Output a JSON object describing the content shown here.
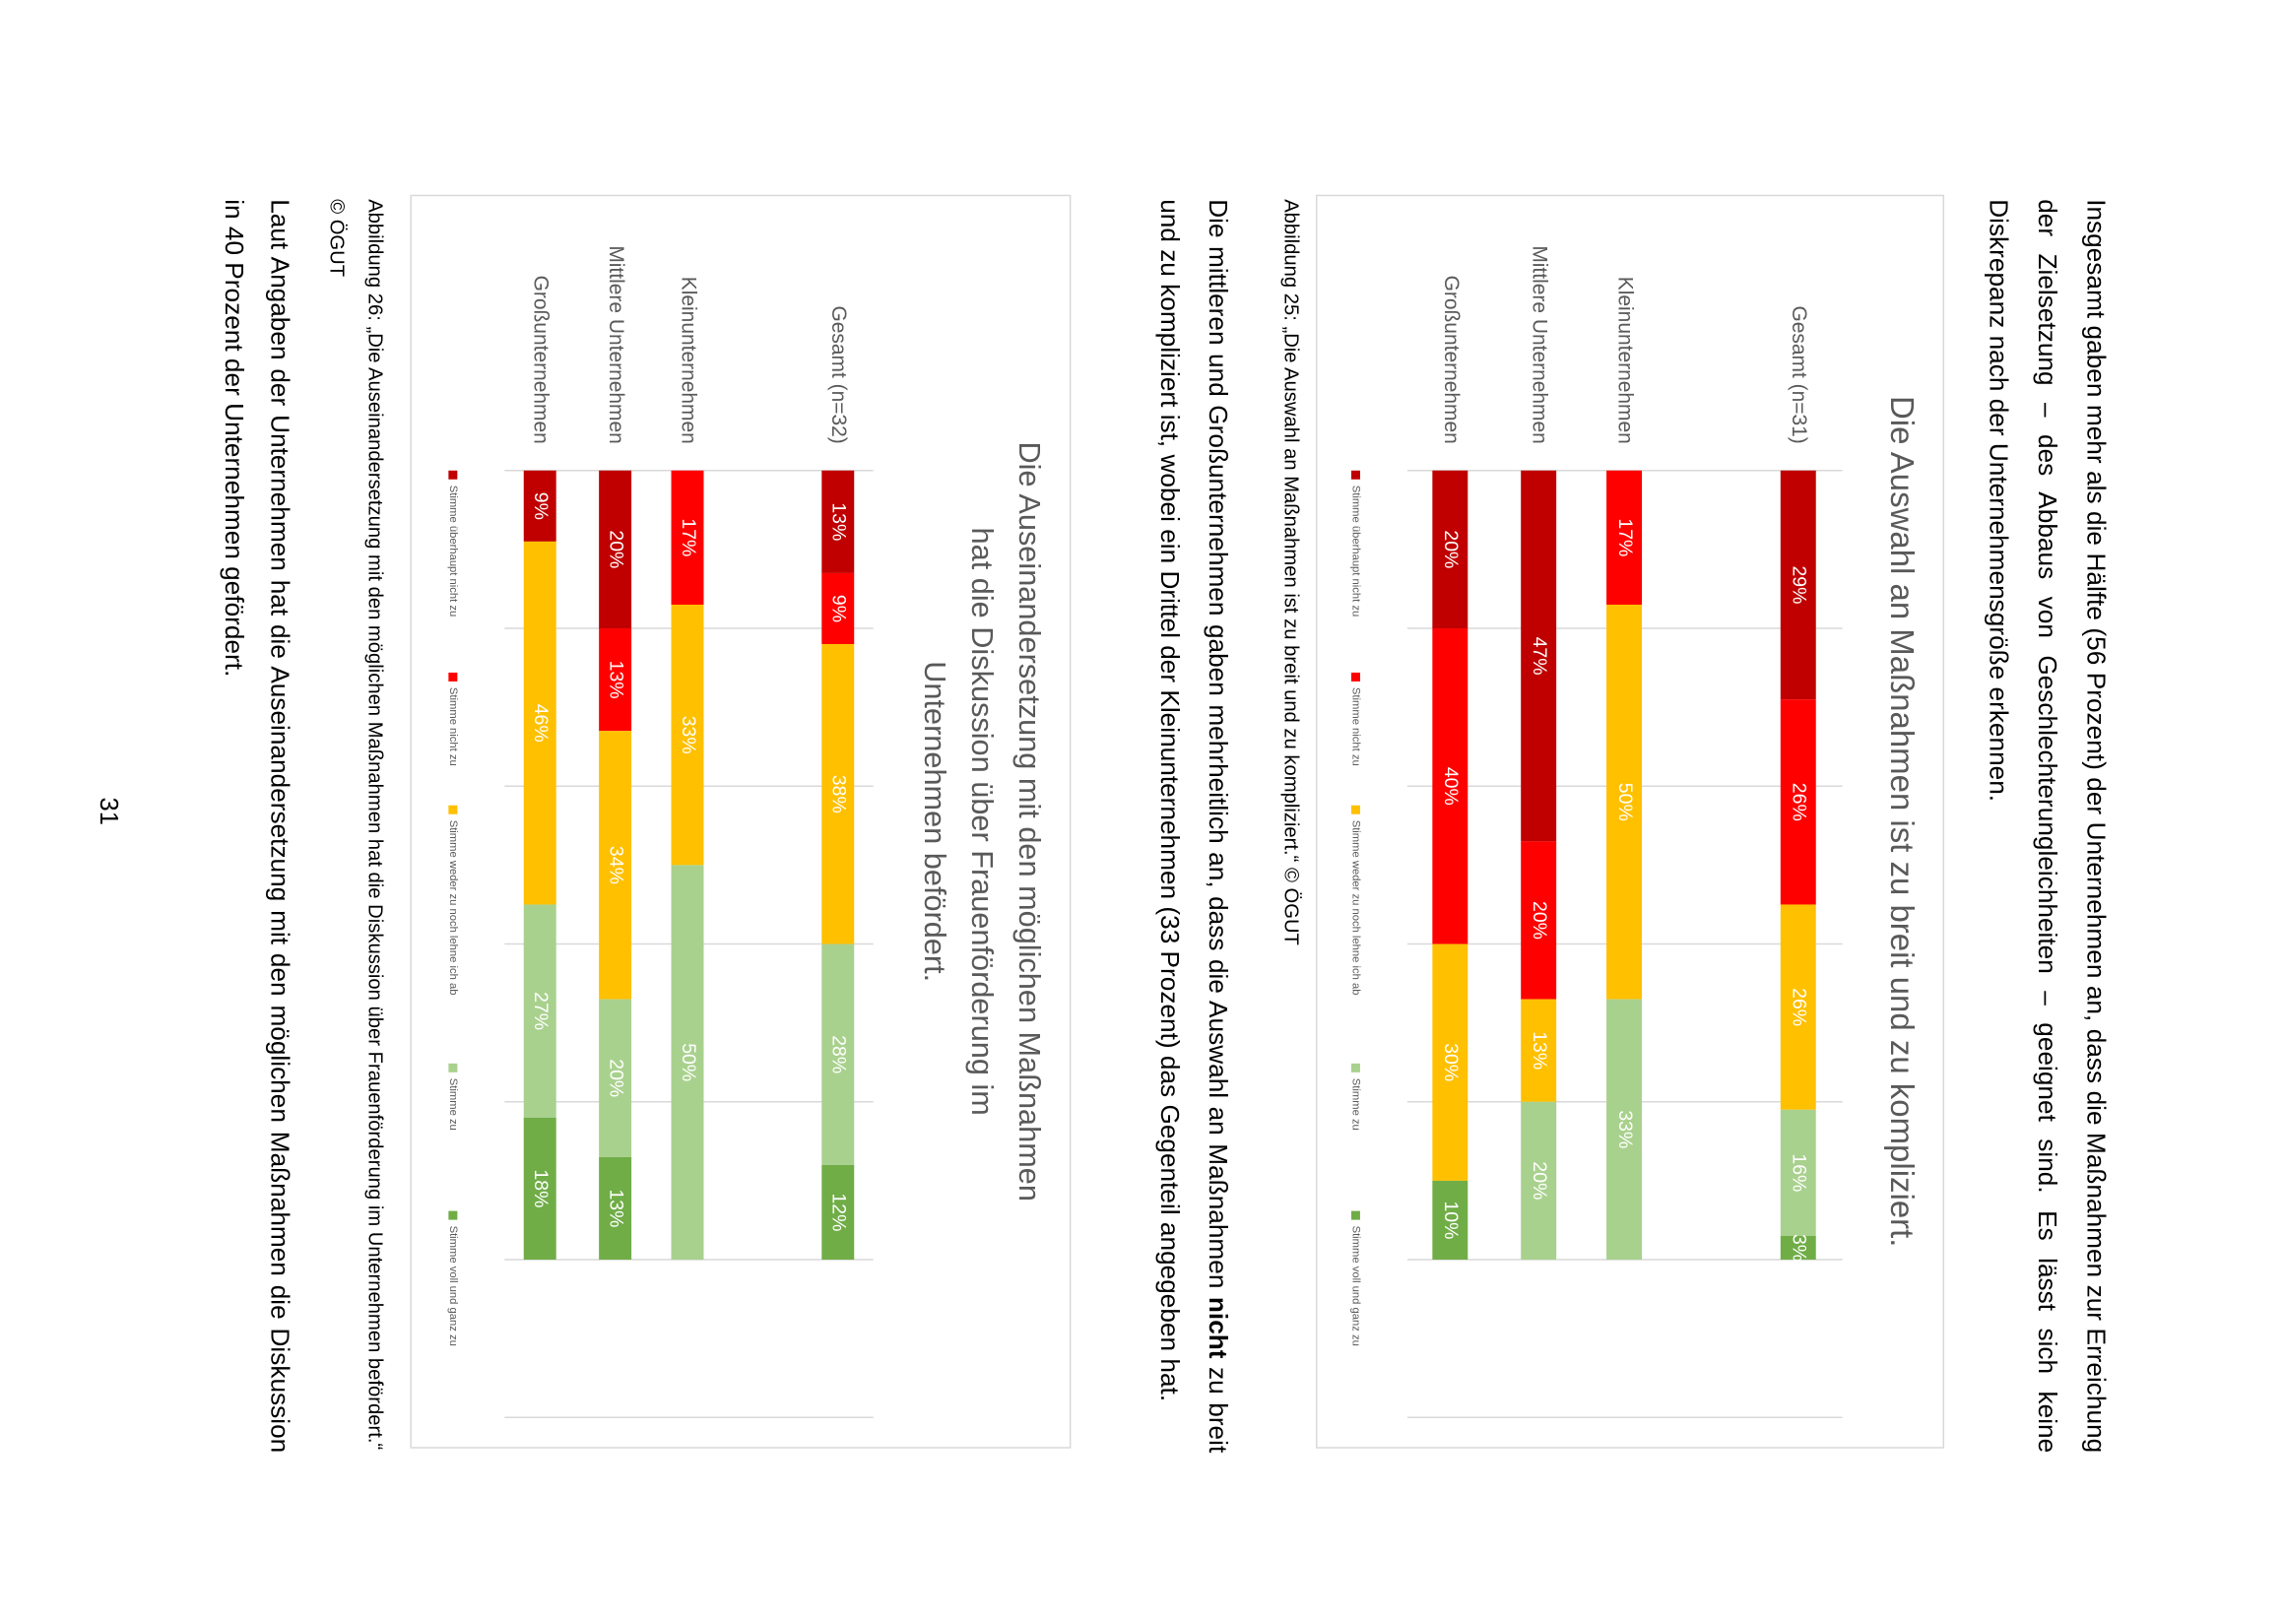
{
  "paragraphs": [
    "Insgesamt gaben mehr als die Hälfte (56 Prozent) der Unternehmen an, dass die Maßnahmen zur Erreichung der Zielsetzung – des Abbaus von Geschlechterungleichheiten – geeignet sind. Es lässt sich keine Diskrepanz nach der Unternehmensgröße erkennen.",
    [
      "Die mittleren und Großunternehmen gaben mehrheitlich an, dass die Auswahl an Maßnahmen ",
      "nicht",
      " zu breit und zu kompliziert ist, wobei ein Drittel der Kleinunternehmen (33 Prozent) das Gegenteil angegeben hat."
    ],
    "Laut Angaben der Unternehmen hat die Auseinandersetzung mit den möglichen Maßnahmen die Diskussion in 40 Prozent der Unternehmen gefördert."
  ],
  "captions": [
    "Abbildung 25: „Die Auswahl an Maßnahmen ist zu breit und zu kompliziert.“ © ÖGUT",
    "Abbildung 26: „Die Auseinandersetzung mit den möglichen Maßnahmen hat die Diskussion über Frauenförderung im Unternehmen befördert.“ © ÖGUT"
  ],
  "page_number": "31",
  "chart_data": [
    {
      "type": "bar",
      "orientation": "horizontal",
      "stacked": true,
      "grid": true,
      "legend": "bottom",
      "title": "Die Auswahl an Maßnahmen ist zu breit und zu kompliziert.",
      "categories": [
        "Gesamt (n=31)",
        "Kleinunternehmen",
        "Mittlere Unternehmen",
        "Großunternehmen"
      ],
      "xlim": [
        0,
        120
      ],
      "xticks": [
        0,
        20,
        40,
        60,
        80,
        100,
        120
      ],
      "series": [
        {
          "name": "Stimme überhaupt nicht zu",
          "color": "#c00000",
          "values": [
            29,
            0,
            47,
            20
          ],
          "value_labels": [
            "29%",
            null,
            "47%",
            "20%"
          ]
        },
        {
          "name": "Stimme nicht zu",
          "color": "#ff0000",
          "values": [
            26,
            17,
            20,
            40
          ],
          "value_labels": [
            "26%",
            "17%",
            "20%",
            "40%"
          ]
        },
        {
          "name": "Stimme weder zu noch lehne ich ab",
          "color": "#ffc000",
          "values": [
            26,
            50,
            13,
            30
          ],
          "value_labels": [
            "26%",
            "50%",
            "13%",
            "30%"
          ]
        },
        {
          "name": "Stimme zu",
          "color": "#a9d18e",
          "values": [
            16,
            33,
            20,
            0
          ],
          "value_labels": [
            "16%",
            "33%",
            "20%",
            null
          ]
        },
        {
          "name": "Stimme voll und ganz zu",
          "color": "#70ad47",
          "values": [
            3,
            0,
            0,
            10
          ],
          "value_labels": [
            "3%",
            null,
            null,
            "10%"
          ]
        }
      ]
    },
    {
      "type": "bar",
      "orientation": "horizontal",
      "stacked": true,
      "grid": true,
      "legend": "bottom",
      "title": "Die Auseinandersetzung mit den möglichen Maßnahmen hat die Diskussion über Frauenförderung im Unternehmen befördert.",
      "categories": [
        "Gesamt (n=32)",
        "Kleinunternehmen",
        "Mittlere Unternehmen",
        "Großunternehmen"
      ],
      "xlim": [
        0,
        120
      ],
      "xticks": [
        0,
        20,
        40,
        60,
        80,
        100,
        120
      ],
      "series": [
        {
          "name": "Stimme überhaupt nicht zu",
          "color": "#c00000",
          "values": [
            13,
            0,
            20,
            9
          ],
          "value_labels": [
            "13%",
            null,
            "20%",
            "9%"
          ]
        },
        {
          "name": "Stimme nicht zu",
          "color": "#ff0000",
          "values": [
            9,
            17,
            13,
            0
          ],
          "value_labels": [
            "9%",
            "17%",
            "13%",
            null
          ]
        },
        {
          "name": "Stimme weder zu noch lehne ich ab",
          "color": "#ffc000",
          "values": [
            38,
            33,
            34,
            46
          ],
          "value_labels": [
            "38%",
            "33%",
            "34%",
            "46%"
          ]
        },
        {
          "name": "Stimme zu",
          "color": "#a9d18e",
          "values": [
            28,
            50,
            20,
            27
          ],
          "value_labels": [
            "28%",
            "50%",
            "20%",
            "27%"
          ]
        },
        {
          "name": "Stimme voll und ganz zu",
          "color": "#70ad47",
          "values": [
            12,
            0,
            13,
            18
          ],
          "value_labels": [
            "12%",
            null,
            "13%",
            "18%"
          ]
        }
      ]
    }
  ]
}
